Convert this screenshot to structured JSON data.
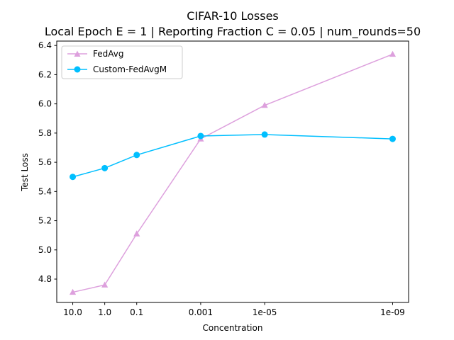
{
  "chart_data": {
    "type": "line",
    "title": "CIFAR-10 Losses",
    "subtitle": "Local Epoch E = 1 | Reporting Fraction C = 0.05 | num_rounds=50",
    "xlabel": "Concentration",
    "ylabel": "Test Loss",
    "categories": [
      "10.0",
      "1.0",
      "0.1",
      "0.001",
      "1e-05",
      "1e-09"
    ],
    "x_scale": "log",
    "x_values": [
      10.0,
      1.0,
      0.1,
      0.001,
      1e-05,
      1e-09
    ],
    "ylim": [
      4.64,
      6.43
    ],
    "yticks": [
      4.8,
      5.0,
      5.2,
      5.4,
      5.6,
      5.8,
      6.0,
      6.2,
      6.4
    ],
    "ytick_labels": [
      "4.8",
      "5.0",
      "5.2",
      "5.4",
      "5.6",
      "5.8",
      "6.0",
      "6.2",
      "6.4"
    ],
    "grid": false,
    "legend_position": "top-left",
    "series": [
      {
        "name": "FedAvg",
        "values": [
          4.71,
          4.76,
          5.11,
          5.76,
          5.99,
          6.34
        ],
        "color": "#dda0dd",
        "marker": "triangle"
      },
      {
        "name": "Custom-FedAvgM",
        "values": [
          5.5,
          5.56,
          5.65,
          5.78,
          5.79,
          5.76
        ],
        "color": "#00bfff",
        "marker": "circle"
      }
    ]
  }
}
